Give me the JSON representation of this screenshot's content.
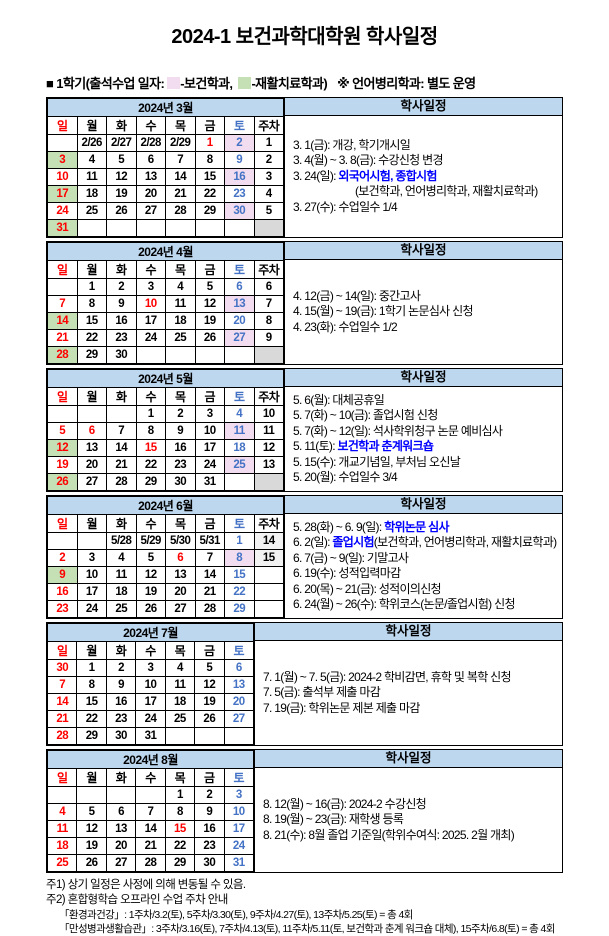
{
  "title": "2024-1 보건과학대학원 학사일정",
  "legend": {
    "prefix": "■ 1학기(출석수업 일자:",
    "dept1": "-보건학과,",
    "dept2": "-재활치료학과)",
    "note": "※ 언어병리학과: 별도 운영"
  },
  "panel_title": "학사일정",
  "colors": {
    "header_bg": "#BDD7EE",
    "dept_health_pink": "#F2DCEF",
    "dept_rehab_green": "#C5E0B4",
    "holiday_red": "#FF0000",
    "saturday_blue": "#4472C4",
    "event_highlight_blue": "#0000FF",
    "empty_week_gray": "#D9D9D9",
    "week_fill_gray": "#F2F2F2"
  },
  "months": [
    {
      "id": "2024-03",
      "name": "2024년 3월",
      "day_headers": [
        "일",
        "월",
        "화",
        "수",
        "목",
        "금",
        "토",
        "주차"
      ],
      "rows": [
        [
          {
            "t": ""
          },
          {
            "t": "2/26"
          },
          {
            "t": "2/27"
          },
          {
            "t": "2/28"
          },
          {
            "t": "2/29"
          },
          {
            "t": "1",
            "c": "red"
          },
          {
            "t": "2",
            "c": "sat",
            "bg": "pink"
          },
          {
            "t": "1"
          }
        ],
        [
          {
            "t": "3",
            "c": "red",
            "bg": "green"
          },
          {
            "t": "4"
          },
          {
            "t": "5"
          },
          {
            "t": "6"
          },
          {
            "t": "7"
          },
          {
            "t": "8"
          },
          {
            "t": "9",
            "c": "sat"
          },
          {
            "t": "2"
          }
        ],
        [
          {
            "t": "10",
            "c": "red"
          },
          {
            "t": "11"
          },
          {
            "t": "12"
          },
          {
            "t": "13"
          },
          {
            "t": "14"
          },
          {
            "t": "15"
          },
          {
            "t": "16",
            "c": "sat",
            "bg": "pink"
          },
          {
            "t": "3"
          }
        ],
        [
          {
            "t": "17",
            "c": "red",
            "bg": "green"
          },
          {
            "t": "18"
          },
          {
            "t": "19"
          },
          {
            "t": "20"
          },
          {
            "t": "21"
          },
          {
            "t": "22"
          },
          {
            "t": "23",
            "c": "sat"
          },
          {
            "t": "4"
          }
        ],
        [
          {
            "t": "24",
            "c": "red"
          },
          {
            "t": "25"
          },
          {
            "t": "26"
          },
          {
            "t": "27"
          },
          {
            "t": "28"
          },
          {
            "t": "29"
          },
          {
            "t": "30",
            "c": "sat",
            "bg": "pink"
          },
          {
            "t": "5"
          }
        ],
        [
          {
            "t": "31",
            "c": "red",
            "bg": "green"
          },
          {
            "t": ""
          },
          {
            "t": ""
          },
          {
            "t": ""
          },
          {
            "t": ""
          },
          {
            "t": ""
          },
          {
            "t": ""
          },
          {
            "t": "",
            "bg": "gray"
          }
        ]
      ],
      "events": [
        {
          "segments": [
            {
              "t": "3. 1(금): 개강, 학기개시일"
            }
          ]
        },
        {
          "segments": [
            {
              "t": "3. 4(월) ~ 3. 8(금): 수강신청 변경"
            }
          ]
        },
        {
          "segments": [
            {
              "t": "3. 24(일): "
            },
            {
              "t": "외국어시험, 종합시험",
              "c": "blue"
            }
          ]
        },
        {
          "segments": [
            {
              "t": "(보건학과, 언어병리학과, 재활치료학과)"
            }
          ],
          "indent": 62
        },
        {
          "segments": [
            {
              "t": "3. 27(수): 수업일수 1/4"
            }
          ]
        }
      ]
    },
    {
      "id": "2024-04",
      "name": "2024년 4월",
      "day_headers": [
        "일",
        "월",
        "화",
        "수",
        "목",
        "금",
        "토",
        "주차"
      ],
      "rows": [
        [
          {
            "t": ""
          },
          {
            "t": "1"
          },
          {
            "t": "2"
          },
          {
            "t": "3"
          },
          {
            "t": "4"
          },
          {
            "t": "5"
          },
          {
            "t": "6",
            "c": "sat"
          },
          {
            "t": "6"
          }
        ],
        [
          {
            "t": "7",
            "c": "red"
          },
          {
            "t": "8"
          },
          {
            "t": "9"
          },
          {
            "t": "10",
            "c": "red"
          },
          {
            "t": "11"
          },
          {
            "t": "12"
          },
          {
            "t": "13",
            "c": "sat",
            "bg": "pink"
          },
          {
            "t": "7"
          }
        ],
        [
          {
            "t": "14",
            "c": "red",
            "bg": "green"
          },
          {
            "t": "15"
          },
          {
            "t": "16"
          },
          {
            "t": "17"
          },
          {
            "t": "18"
          },
          {
            "t": "19"
          },
          {
            "t": "20",
            "c": "sat"
          },
          {
            "t": "8"
          }
        ],
        [
          {
            "t": "21",
            "c": "red"
          },
          {
            "t": "22"
          },
          {
            "t": "23"
          },
          {
            "t": "24"
          },
          {
            "t": "25"
          },
          {
            "t": "26"
          },
          {
            "t": "27",
            "c": "sat",
            "bg": "pink"
          },
          {
            "t": "9"
          }
        ],
        [
          {
            "t": "28",
            "c": "red",
            "bg": "green"
          },
          {
            "t": "29"
          },
          {
            "t": "30"
          },
          {
            "t": ""
          },
          {
            "t": ""
          },
          {
            "t": ""
          },
          {
            "t": ""
          },
          {
            "t": "",
            "bg": "gray"
          }
        ]
      ],
      "events": [
        {
          "segments": [
            {
              "t": "4. 12(금) ~ 14(일): 중간고사"
            }
          ]
        },
        {
          "segments": [
            {
              "t": "4. 15(월) ~ 19(금): 1학기 논문심사 신청"
            }
          ]
        },
        {
          "segments": [
            {
              "t": "4. 23(화): 수업일수 1/2"
            }
          ]
        }
      ]
    },
    {
      "id": "2024-05",
      "name": "2024년 5월",
      "day_headers": [
        "일",
        "월",
        "화",
        "수",
        "목",
        "금",
        "토",
        "주차"
      ],
      "rows": [
        [
          {
            "t": ""
          },
          {
            "t": ""
          },
          {
            "t": ""
          },
          {
            "t": "1"
          },
          {
            "t": "2"
          },
          {
            "t": "3"
          },
          {
            "t": "4",
            "c": "sat"
          },
          {
            "t": "10"
          }
        ],
        [
          {
            "t": "5",
            "c": "red"
          },
          {
            "t": "6",
            "c": "red"
          },
          {
            "t": "7"
          },
          {
            "t": "8"
          },
          {
            "t": "9"
          },
          {
            "t": "10"
          },
          {
            "t": "11",
            "c": "sat",
            "bg": "pink"
          },
          {
            "t": "11"
          }
        ],
        [
          {
            "t": "12",
            "c": "red",
            "bg": "green"
          },
          {
            "t": "13"
          },
          {
            "t": "14"
          },
          {
            "t": "15",
            "c": "red"
          },
          {
            "t": "16"
          },
          {
            "t": "17"
          },
          {
            "t": "18",
            "c": "sat"
          },
          {
            "t": "12"
          }
        ],
        [
          {
            "t": "19",
            "c": "red"
          },
          {
            "t": "20"
          },
          {
            "t": "21"
          },
          {
            "t": "22"
          },
          {
            "t": "23"
          },
          {
            "t": "24"
          },
          {
            "t": "25",
            "c": "sat",
            "bg": "pink"
          },
          {
            "t": "13"
          }
        ],
        [
          {
            "t": "26",
            "c": "red",
            "bg": "green"
          },
          {
            "t": "27"
          },
          {
            "t": "28"
          },
          {
            "t": "29"
          },
          {
            "t": "30"
          },
          {
            "t": "31"
          },
          {
            "t": ""
          },
          {
            "t": "",
            "bg": "gray"
          }
        ]
      ],
      "events": [
        {
          "segments": [
            {
              "t": "5. 6(월): 대체공휴일"
            }
          ]
        },
        {
          "segments": [
            {
              "t": "5. 7(화) ~ 10(금): 졸업시험 신청"
            }
          ]
        },
        {
          "segments": [
            {
              "t": "5. 7(화) ~ 12(일): 석사학위청구 논문 예비심사"
            }
          ]
        },
        {
          "segments": [
            {
              "t": "5. 11(토): "
            },
            {
              "t": "보건학과 춘계워크숍",
              "c": "blue"
            }
          ]
        },
        {
          "segments": [
            {
              "t": "5. 15(수): 개교기념일, 부처님 오신날"
            }
          ]
        },
        {
          "segments": [
            {
              "t": "5. 20(월): 수업일수 3/4"
            }
          ]
        }
      ]
    },
    {
      "id": "2024-06",
      "name": "2024년 6월",
      "day_headers": [
        "일",
        "월",
        "화",
        "수",
        "목",
        "금",
        "토",
        "주차"
      ],
      "rows": [
        [
          {
            "t": ""
          },
          {
            "t": ""
          },
          {
            "t": "5/28"
          },
          {
            "t": "5/29"
          },
          {
            "t": "5/30"
          },
          {
            "t": "5/31"
          },
          {
            "t": "1",
            "c": "sat"
          },
          {
            "t": "14",
            "bg": "lgray"
          }
        ],
        [
          {
            "t": "2",
            "c": "red"
          },
          {
            "t": "3"
          },
          {
            "t": "4"
          },
          {
            "t": "5"
          },
          {
            "t": "6",
            "c": "red"
          },
          {
            "t": "7"
          },
          {
            "t": "8",
            "c": "sat",
            "bg": "pink"
          },
          {
            "t": "15",
            "bg": "lgray"
          }
        ],
        [
          {
            "t": "9",
            "c": "red",
            "bg": "green"
          },
          {
            "t": "10"
          },
          {
            "t": "11"
          },
          {
            "t": "12"
          },
          {
            "t": "13"
          },
          {
            "t": "14"
          },
          {
            "t": "15",
            "c": "sat"
          },
          {
            "t": ""
          }
        ],
        [
          {
            "t": "16",
            "c": "red"
          },
          {
            "t": "17"
          },
          {
            "t": "18"
          },
          {
            "t": "19"
          },
          {
            "t": "20"
          },
          {
            "t": "21"
          },
          {
            "t": "22",
            "c": "sat"
          },
          {
            "t": ""
          }
        ],
        [
          {
            "t": "23",
            "c": "red"
          },
          {
            "t": "24"
          },
          {
            "t": "25"
          },
          {
            "t": "26"
          },
          {
            "t": "27"
          },
          {
            "t": "28"
          },
          {
            "t": "29",
            "c": "sat"
          },
          {
            "t": ""
          }
        ]
      ],
      "events": [
        {
          "segments": [
            {
              "t": "5. 28(화) ~ 6. 9(일): "
            },
            {
              "t": "학위논문 심사",
              "c": "blue"
            }
          ]
        },
        {
          "segments": [
            {
              "t": "6. 2(일): "
            },
            {
              "t": "졸업시험",
              "c": "blue"
            },
            {
              "t": "(보건학과, 언어병리학과, 재활치료학과)"
            }
          ]
        },
        {
          "segments": [
            {
              "t": "6. 7(금) ~ 9(일): 기말고사"
            }
          ]
        },
        {
          "segments": [
            {
              "t": "6. 19(수): 성적입력마감"
            }
          ]
        },
        {
          "segments": [
            {
              "t": "6. 20(목) ~ 21(금): 성적이의신청"
            }
          ]
        },
        {
          "segments": [
            {
              "t": "6. 24(월) ~ 26(수): 학위코스(논문/졸업시험) 신청"
            }
          ]
        }
      ]
    },
    {
      "id": "2024-07",
      "name": "2024년 7월",
      "day_headers": [
        "일",
        "월",
        "화",
        "수",
        "목",
        "금",
        "토"
      ],
      "rows": [
        [
          {
            "t": "30",
            "c": "red"
          },
          {
            "t": "1"
          },
          {
            "t": "2"
          },
          {
            "t": "3"
          },
          {
            "t": "4"
          },
          {
            "t": "5"
          },
          {
            "t": "6",
            "c": "sat"
          }
        ],
        [
          {
            "t": "7",
            "c": "red"
          },
          {
            "t": "8"
          },
          {
            "t": "9"
          },
          {
            "t": "10"
          },
          {
            "t": "11"
          },
          {
            "t": "12"
          },
          {
            "t": "13",
            "c": "sat"
          }
        ],
        [
          {
            "t": "14",
            "c": "red"
          },
          {
            "t": "15"
          },
          {
            "t": "16"
          },
          {
            "t": "17"
          },
          {
            "t": "18"
          },
          {
            "t": "19"
          },
          {
            "t": "20",
            "c": "sat"
          }
        ],
        [
          {
            "t": "21",
            "c": "red"
          },
          {
            "t": "22"
          },
          {
            "t": "23"
          },
          {
            "t": "24"
          },
          {
            "t": "25"
          },
          {
            "t": "26"
          },
          {
            "t": "27",
            "c": "sat"
          }
        ],
        [
          {
            "t": "28",
            "c": "red"
          },
          {
            "t": "29"
          },
          {
            "t": "30"
          },
          {
            "t": "31"
          },
          {
            "t": ""
          },
          {
            "t": ""
          },
          {
            "t": ""
          }
        ]
      ],
      "events": [
        {
          "segments": [
            {
              "t": "7. 1(월) ~ 7. 5(금): 2024-2 학비감면, 휴학 및 복학 신청"
            }
          ]
        },
        {
          "segments": [
            {
              "t": "7. 5(금): 출석부 제출 마감"
            }
          ]
        },
        {
          "segments": [
            {
              "t": "7. 19(금): 학위논문 제본 제출 마감"
            }
          ]
        }
      ]
    },
    {
      "id": "2024-08",
      "name": "2024년 8월",
      "day_headers": [
        "일",
        "월",
        "화",
        "수",
        "목",
        "금",
        "토"
      ],
      "rows": [
        [
          {
            "t": ""
          },
          {
            "t": ""
          },
          {
            "t": ""
          },
          {
            "t": ""
          },
          {
            "t": "1"
          },
          {
            "t": "2"
          },
          {
            "t": "3",
            "c": "sat"
          }
        ],
        [
          {
            "t": "4",
            "c": "red"
          },
          {
            "t": "5"
          },
          {
            "t": "6"
          },
          {
            "t": "7"
          },
          {
            "t": "8"
          },
          {
            "t": "9"
          },
          {
            "t": "10",
            "c": "sat"
          }
        ],
        [
          {
            "t": "11",
            "c": "red"
          },
          {
            "t": "12"
          },
          {
            "t": "13"
          },
          {
            "t": "14"
          },
          {
            "t": "15",
            "c": "red"
          },
          {
            "t": "16"
          },
          {
            "t": "17",
            "c": "sat"
          }
        ],
        [
          {
            "t": "18",
            "c": "red"
          },
          {
            "t": "19"
          },
          {
            "t": "20"
          },
          {
            "t": "21"
          },
          {
            "t": "22"
          },
          {
            "t": "23"
          },
          {
            "t": "24",
            "c": "sat"
          }
        ],
        [
          {
            "t": "25",
            "c": "red"
          },
          {
            "t": "26"
          },
          {
            "t": "27"
          },
          {
            "t": "28"
          },
          {
            "t": "29"
          },
          {
            "t": "30"
          },
          {
            "t": "31",
            "c": "sat"
          }
        ]
      ],
      "events": [
        {
          "segments": [
            {
              "t": "8. 12(월) ~ 16(금): 2024-2 수강신청"
            }
          ]
        },
        {
          "segments": [
            {
              "t": "8. 19(월) ~ 23(금): 재학생 등록"
            }
          ]
        },
        {
          "segments": [
            {
              "t": "8. 21(수): 8월 졸업 기준일(학위수여식: 2025. 2월 개최)"
            }
          ]
        }
      ]
    }
  ],
  "footnotes": [
    "주1) 상기 일정은 사정에 의해 변동될 수 있음.",
    "주2) 혼합형학습 오프라인 수업 주차 안내",
    "「환경과건강」: 1주차/3.2(토), 5주차/3.30(토), 9주차/4.27(토), 13주차/5.25(토) = 총 4회",
    "「만성병과생활습관」: 3주차/3.16(토), 7주차/4.13(토), 11주차/5.11(토, 보건학과 춘계 워크숍 대체), 15주차/6.8(토) = 총 4회"
  ]
}
